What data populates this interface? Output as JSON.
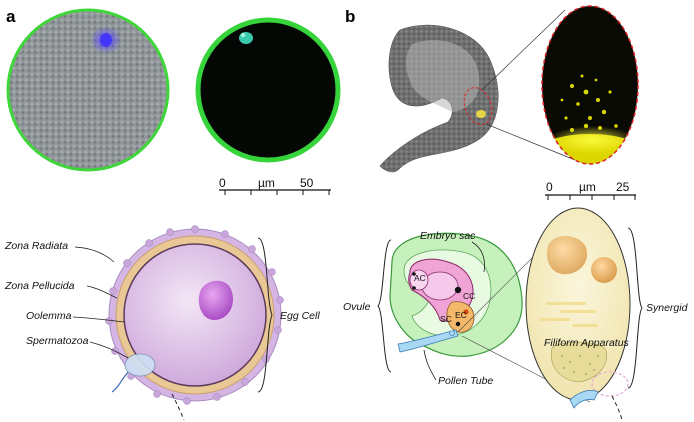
{
  "panels": {
    "a": {
      "letter": "a",
      "scale_bar": {
        "start": "0",
        "unit": "µm",
        "end": "50"
      },
      "labels": {
        "zona_radiata": "Zona Radiata",
        "zona_pellucida": "Zona Pellucida",
        "oolemma": "Oolemma",
        "spermatozoa": "Spermatozoa",
        "egg_cell": "Egg Cell"
      }
    },
    "b": {
      "letter": "b",
      "scale_bar": {
        "start": "0",
        "unit": "µm",
        "end": "25"
      },
      "labels": {
        "embryo_sac": "Embryo sac",
        "ovule": "Ovule",
        "pollen_tube": "Pollen Tube",
        "synergid": "Synergid",
        "filiform_apparatus": "Filiform Apparatus",
        "ac": "AC",
        "cc": "CC",
        "sc": "SC",
        "ec": "EC"
      }
    }
  },
  "colors": {
    "membrane_green": "#35d13a",
    "blue_stain": "#3a2cff",
    "cyan_stain": "#3fe0c0",
    "yellow_signal": "#e8e000",
    "zona_radiata": "#c8a8dc",
    "zona_pellucida": "#e8c89a",
    "cytoplasm": "#d8b6e6",
    "nucleus": "#c46ad8",
    "ovule_green": "#b8ecb0",
    "synergid_fill": "#f4ecc0"
  }
}
